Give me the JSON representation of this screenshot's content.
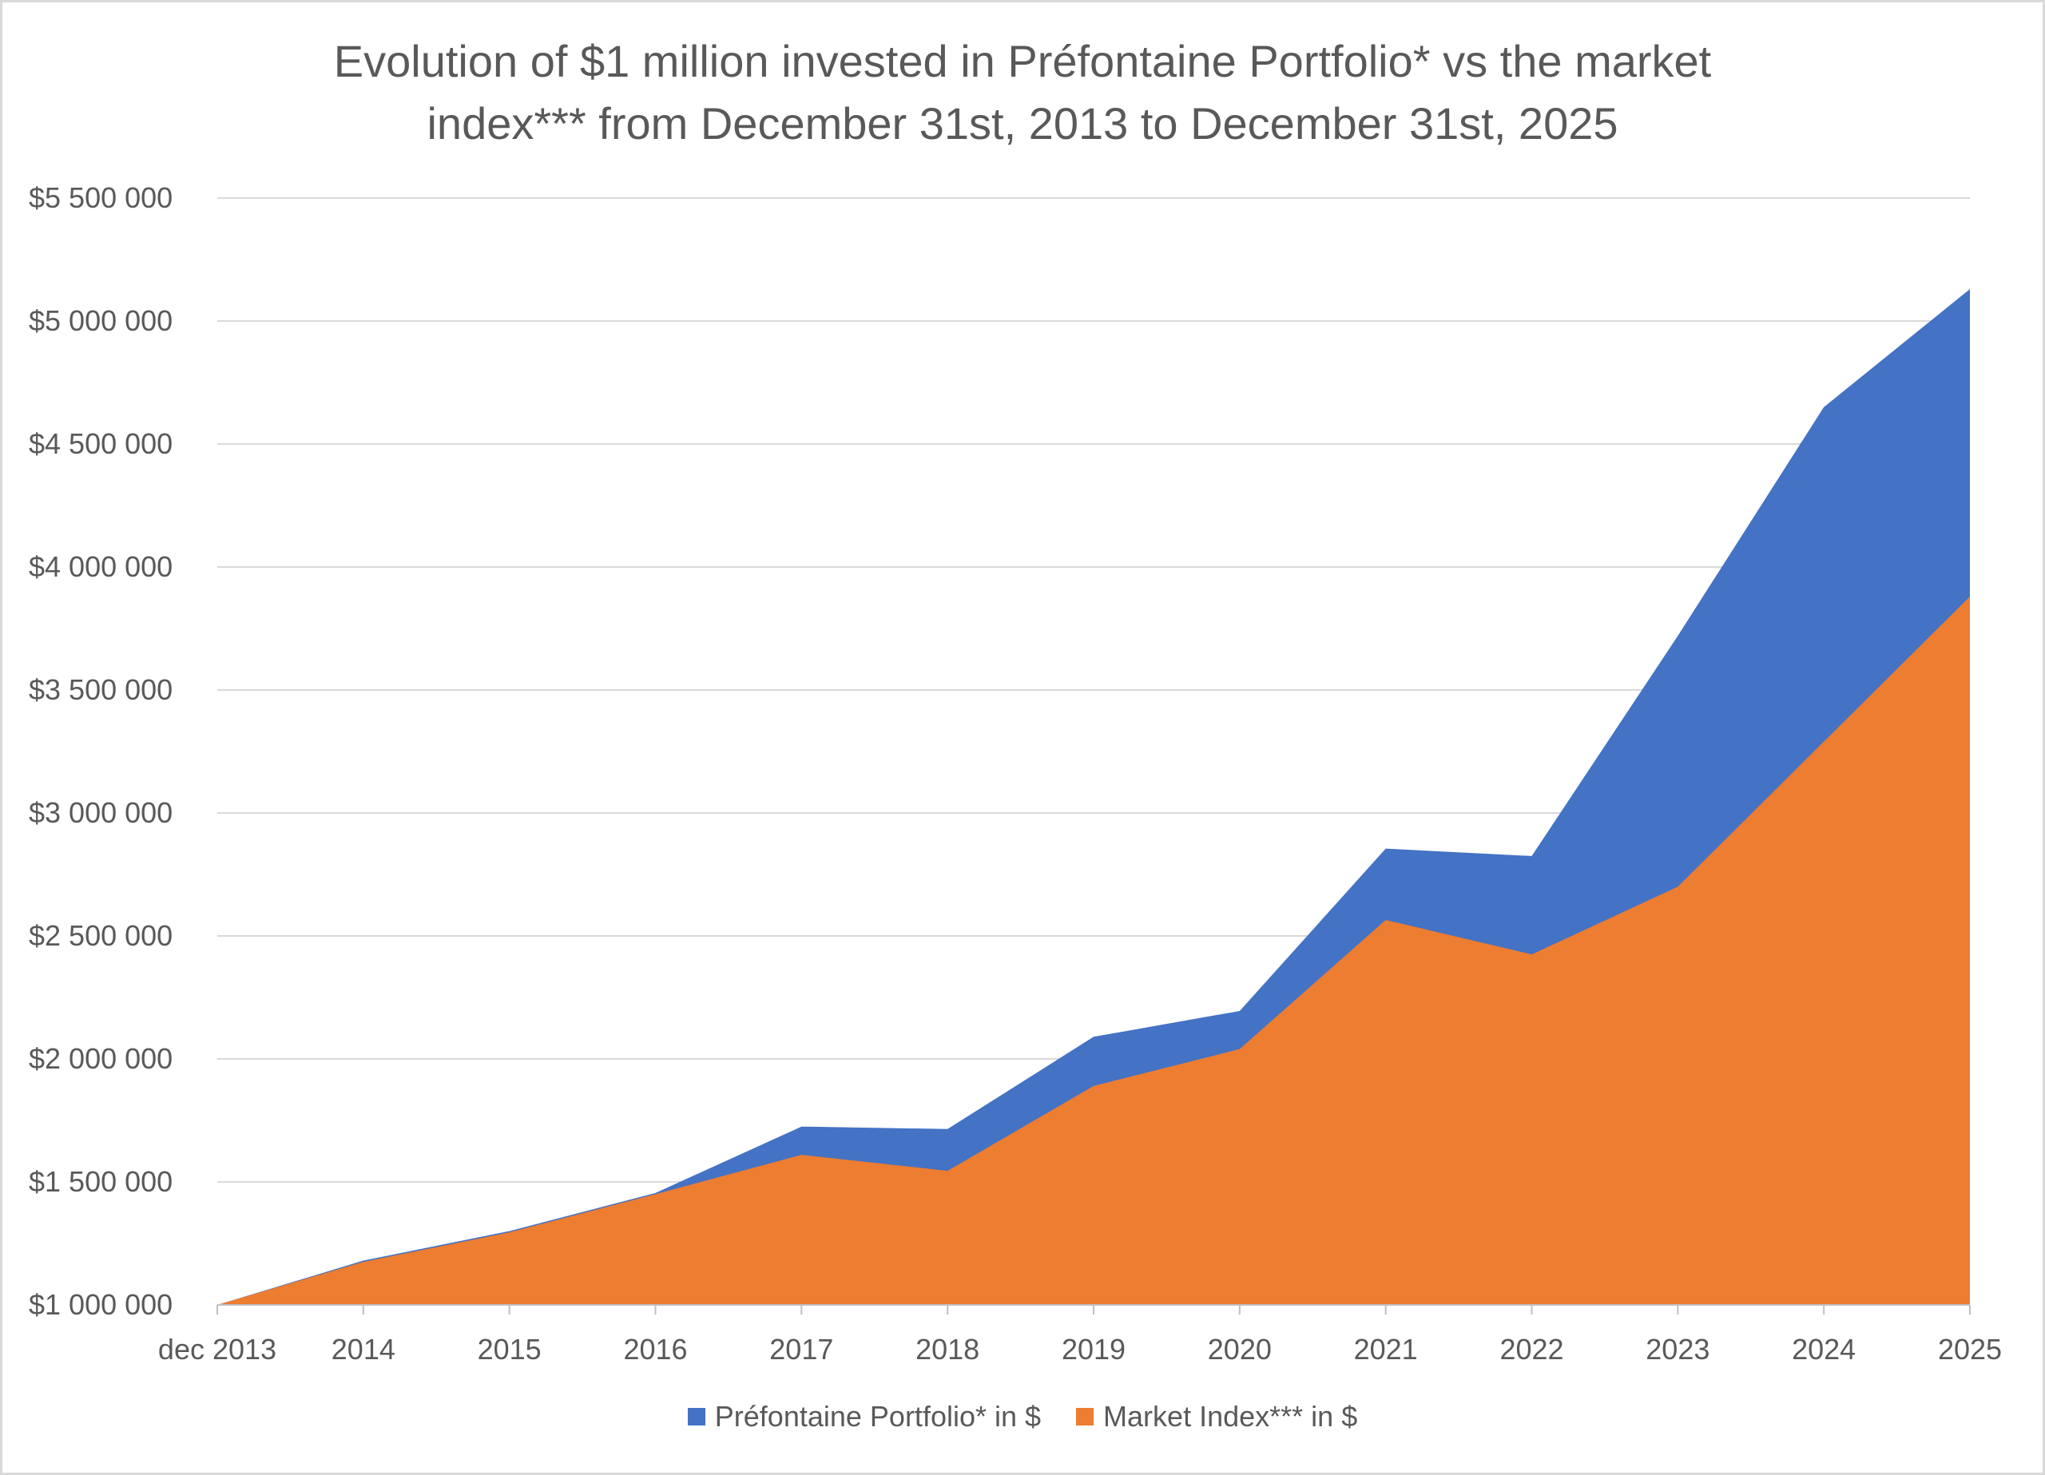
{
  "chart_data": {
    "type": "area",
    "title_lines": [
      "Evolution of $1 million invested in Préfontaine Portfolio* vs the market",
      "index*** from December 31st, 2013 to December 31st, 2025"
    ],
    "categories": [
      "dec 2013",
      "2014",
      "2015",
      "2016",
      "2017",
      "2018",
      "2019",
      "2020",
      "2021",
      "2022",
      "2023",
      "2024",
      "2025"
    ],
    "y_ticks": [
      {
        "value": 1000000,
        "label": "$1 000 000"
      },
      {
        "value": 1500000,
        "label": "$1 500 000"
      },
      {
        "value": 2000000,
        "label": "$2 000 000"
      },
      {
        "value": 2500000,
        "label": "$2 500 000"
      },
      {
        "value": 3000000,
        "label": "$3 000 000"
      },
      {
        "value": 3500000,
        "label": "$3 500 000"
      },
      {
        "value": 4000000,
        "label": "$4 000 000"
      },
      {
        "value": 4500000,
        "label": "$4 500 000"
      },
      {
        "value": 5000000,
        "label": "$5 000 000"
      },
      {
        "value": 5500000,
        "label": "$5 500 000"
      }
    ],
    "ylim": [
      1000000,
      5500000
    ],
    "grid": true,
    "legend_position": "bottom",
    "series": [
      {
        "name": "Préfontaine Portfolio* in $",
        "color": "#4472c4",
        "values": [
          1000000,
          1180000,
          1300000,
          1455000,
          1725000,
          1715000,
          2090000,
          2195000,
          2855000,
          2825000,
          3720000,
          4650000,
          5130000
        ]
      },
      {
        "name": "Market Index*** in $",
        "color": "#ed7d31",
        "values": [
          1000000,
          1175000,
          1295000,
          1450000,
          1610000,
          1545000,
          1890000,
          2040000,
          2565000,
          2425000,
          2700000,
          3290000,
          3880000
        ]
      }
    ]
  }
}
